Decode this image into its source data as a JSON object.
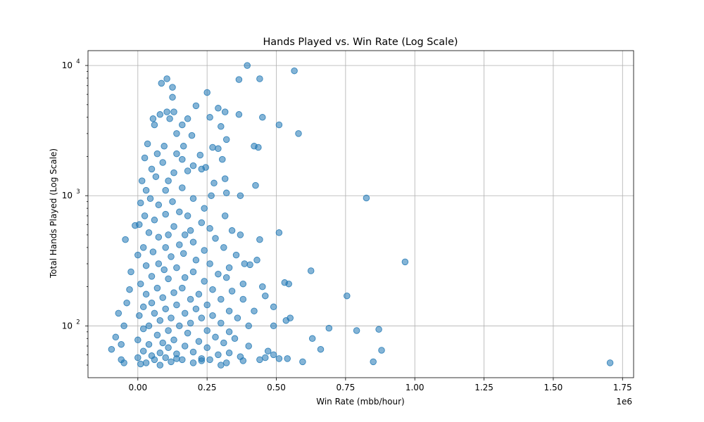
{
  "chart_data": {
    "type": "scatter",
    "title": "Hands Played vs. Win Rate (Log Scale)",
    "xlabel": "Win Rate (mbb/hour)",
    "ylabel": "Total Hands Played (Log Scale)",
    "x_offset_label": "1e6",
    "xlim": [
      -180000,
      1790000
    ],
    "ylim": [
      40,
      13000
    ],
    "y_scale": "log",
    "grid": true,
    "marker_color": "#1f77b4",
    "marker_alpha": 0.55,
    "x_ticks": [
      {
        "value": 0,
        "label": "0.00"
      },
      {
        "value": 250000,
        "label": "0.25"
      },
      {
        "value": 500000,
        "label": "0.50"
      },
      {
        "value": 750000,
        "label": "0.75"
      },
      {
        "value": 1000000,
        "label": "1.00"
      },
      {
        "value": 1250000,
        "label": "1.25"
      },
      {
        "value": 1500000,
        "label": "1.50"
      },
      {
        "value": 1750000,
        "label": "1.75"
      }
    ],
    "y_ticks": [
      {
        "value": 100,
        "base": "10",
        "exp": "2"
      },
      {
        "value": 1000,
        "base": "10",
        "exp": "3"
      },
      {
        "value": 10000,
        "base": "10",
        "exp": "4"
      }
    ],
    "points": [
      [
        395000,
        10000
      ],
      [
        565000,
        9100
      ],
      [
        105000,
        7900
      ],
      [
        440000,
        7900
      ],
      [
        365000,
        7800
      ],
      [
        85000,
        7300
      ],
      [
        125000,
        6800
      ],
      [
        250000,
        6200
      ],
      [
        125000,
        5700
      ],
      [
        210000,
        4900
      ],
      [
        290000,
        4700
      ],
      [
        105000,
        4400
      ],
      [
        130000,
        4400
      ],
      [
        315000,
        4400
      ],
      [
        80000,
        4200
      ],
      [
        365000,
        4200
      ],
      [
        450000,
        4000
      ],
      [
        55000,
        3900
      ],
      [
        115000,
        3900
      ],
      [
        180000,
        3900
      ],
      [
        260000,
        4000
      ],
      [
        510000,
        3500
      ],
      [
        60000,
        3500
      ],
      [
        160000,
        3500
      ],
      [
        300000,
        3400
      ],
      [
        580000,
        3000
      ],
      [
        140000,
        3000
      ],
      [
        195000,
        2900
      ],
      [
        320000,
        2700
      ],
      [
        35000,
        2500
      ],
      [
        95000,
        2400
      ],
      [
        165000,
        2400
      ],
      [
        420000,
        2400
      ],
      [
        435000,
        2350
      ],
      [
        270000,
        2350
      ],
      [
        290000,
        2300
      ],
      [
        70000,
        2100
      ],
      [
        140000,
        2100
      ],
      [
        225000,
        2050
      ],
      [
        25000,
        1950
      ],
      [
        160000,
        1900
      ],
      [
        305000,
        1900
      ],
      [
        90000,
        1800
      ],
      [
        200000,
        1700
      ],
      [
        245000,
        1650
      ],
      [
        50000,
        1600
      ],
      [
        130000,
        1500
      ],
      [
        180000,
        1550
      ],
      [
        230000,
        1600
      ],
      [
        315000,
        1350
      ],
      [
        15000,
        1300
      ],
      [
        65000,
        1400
      ],
      [
        110000,
        1300
      ],
      [
        275000,
        1250
      ],
      [
        425000,
        1200
      ],
      [
        30000,
        1100
      ],
      [
        100000,
        1100
      ],
      [
        160000,
        1150
      ],
      [
        265000,
        1000
      ],
      [
        320000,
        1050
      ],
      [
        370000,
        1000
      ],
      [
        825000,
        960
      ],
      [
        45000,
        950
      ],
      [
        200000,
        950
      ],
      [
        125000,
        900
      ],
      [
        10000,
        880
      ],
      [
        75000,
        850
      ],
      [
        240000,
        800
      ],
      [
        150000,
        750
      ],
      [
        25000,
        700
      ],
      [
        100000,
        720
      ],
      [
        180000,
        700
      ],
      [
        315000,
        700
      ],
      [
        60000,
        650
      ],
      [
        230000,
        620
      ],
      [
        5000,
        600
      ],
      [
        -10000,
        590
      ],
      [
        130000,
        580
      ],
      [
        260000,
        560
      ],
      [
        190000,
        540
      ],
      [
        340000,
        540
      ],
      [
        40000,
        520
      ],
      [
        110000,
        500
      ],
      [
        170000,
        500
      ],
      [
        510000,
        520
      ],
      [
        370000,
        500
      ],
      [
        75000,
        480
      ],
      [
        280000,
        470
      ],
      [
        -45000,
        460
      ],
      [
        440000,
        460
      ],
      [
        200000,
        440
      ],
      [
        150000,
        420
      ],
      [
        20000,
        400
      ],
      [
        100000,
        400
      ],
      [
        240000,
        380
      ],
      [
        310000,
        400
      ],
      [
        55000,
        370
      ],
      [
        165000,
        360
      ],
      [
        355000,
        350
      ],
      [
        0,
        350
      ],
      [
        120000,
        340
      ],
      [
        210000,
        320
      ],
      [
        430000,
        320
      ],
      [
        965000,
        310
      ],
      [
        75000,
        300
      ],
      [
        260000,
        300
      ],
      [
        385000,
        300
      ],
      [
        405000,
        295
      ],
      [
        30000,
        290
      ],
      [
        140000,
        280
      ],
      [
        330000,
        280
      ],
      [
        95000,
        270
      ],
      [
        625000,
        265
      ],
      [
        -25000,
        260
      ],
      [
        200000,
        260
      ],
      [
        290000,
        250
      ],
      [
        50000,
        240
      ],
      [
        170000,
        235
      ],
      [
        320000,
        235
      ],
      [
        110000,
        230
      ],
      [
        240000,
        220
      ],
      [
        530000,
        215
      ],
      [
        545000,
        210
      ],
      [
        10000,
        210
      ],
      [
        380000,
        210
      ],
      [
        450000,
        200
      ],
      [
        70000,
        195
      ],
      [
        160000,
        195
      ],
      [
        -30000,
        190
      ],
      [
        270000,
        190
      ],
      [
        340000,
        185
      ],
      [
        130000,
        180
      ],
      [
        30000,
        175
      ],
      [
        220000,
        175
      ],
      [
        460000,
        170
      ],
      [
        755000,
        170
      ],
      [
        90000,
        165
      ],
      [
        190000,
        160
      ],
      [
        300000,
        160
      ],
      [
        380000,
        160
      ],
      [
        -40000,
        150
      ],
      [
        50000,
        150
      ],
      [
        140000,
        145
      ],
      [
        250000,
        145
      ],
      [
        490000,
        140
      ],
      [
        20000,
        140
      ],
      [
        100000,
        135
      ],
      [
        210000,
        135
      ],
      [
        330000,
        130
      ],
      [
        420000,
        130
      ],
      [
        -70000,
        125
      ],
      [
        60000,
        125
      ],
      [
        170000,
        125
      ],
      [
        270000,
        120
      ],
      [
        5000,
        120
      ],
      [
        120000,
        115
      ],
      [
        230000,
        115
      ],
      [
        360000,
        115
      ],
      [
        550000,
        115
      ],
      [
        535000,
        110
      ],
      [
        80000,
        110
      ],
      [
        190000,
        105
      ],
      [
        300000,
        105
      ],
      [
        -50000,
        100
      ],
      [
        40000,
        100
      ],
      [
        150000,
        100
      ],
      [
        400000,
        100
      ],
      [
        490000,
        100
      ],
      [
        690000,
        96
      ],
      [
        870000,
        94
      ],
      [
        790000,
        92
      ],
      [
        20000,
        95
      ],
      [
        110000,
        92
      ],
      [
        250000,
        92
      ],
      [
        330000,
        90
      ],
      [
        180000,
        88
      ],
      [
        70000,
        85
      ],
      [
        -80000,
        82
      ],
      [
        280000,
        82
      ],
      [
        630000,
        80
      ],
      [
        350000,
        80
      ],
      [
        0,
        78
      ],
      [
        130000,
        78
      ],
      [
        220000,
        76
      ],
      [
        90000,
        74
      ],
      [
        310000,
        74
      ],
      [
        -60000,
        72
      ],
      [
        40000,
        72
      ],
      [
        170000,
        70
      ],
      [
        400000,
        70
      ],
      [
        110000,
        68
      ],
      [
        250000,
        68
      ],
      [
        -95000,
        66
      ],
      [
        660000,
        66
      ],
      [
        880000,
        65
      ],
      [
        470000,
        64
      ],
      [
        20000,
        64
      ],
      [
        200000,
        63
      ],
      [
        330000,
        62
      ],
      [
        80000,
        62
      ],
      [
        140000,
        61
      ],
      [
        490000,
        60
      ],
      [
        290000,
        60
      ],
      [
        50000,
        59
      ],
      [
        370000,
        58
      ],
      [
        460000,
        57
      ],
      [
        0,
        57
      ],
      [
        100000,
        57
      ],
      [
        230000,
        56
      ],
      [
        510000,
        56
      ],
      [
        540000,
        56
      ],
      [
        -60000,
        55
      ],
      [
        60000,
        55
      ],
      [
        160000,
        55
      ],
      [
        260000,
        55
      ],
      [
        440000,
        55
      ],
      [
        380000,
        54
      ],
      [
        595000,
        53
      ],
      [
        850000,
        53
      ],
      [
        1705000,
        52
      ],
      [
        120000,
        53
      ],
      [
        320000,
        52
      ],
      [
        -50000,
        52
      ],
      [
        30000,
        52
      ],
      [
        200000,
        52
      ],
      [
        300000,
        50
      ],
      [
        80000,
        50
      ],
      [
        10000,
        51
      ],
      [
        230000,
        54
      ],
      [
        140000,
        56
      ]
    ]
  }
}
